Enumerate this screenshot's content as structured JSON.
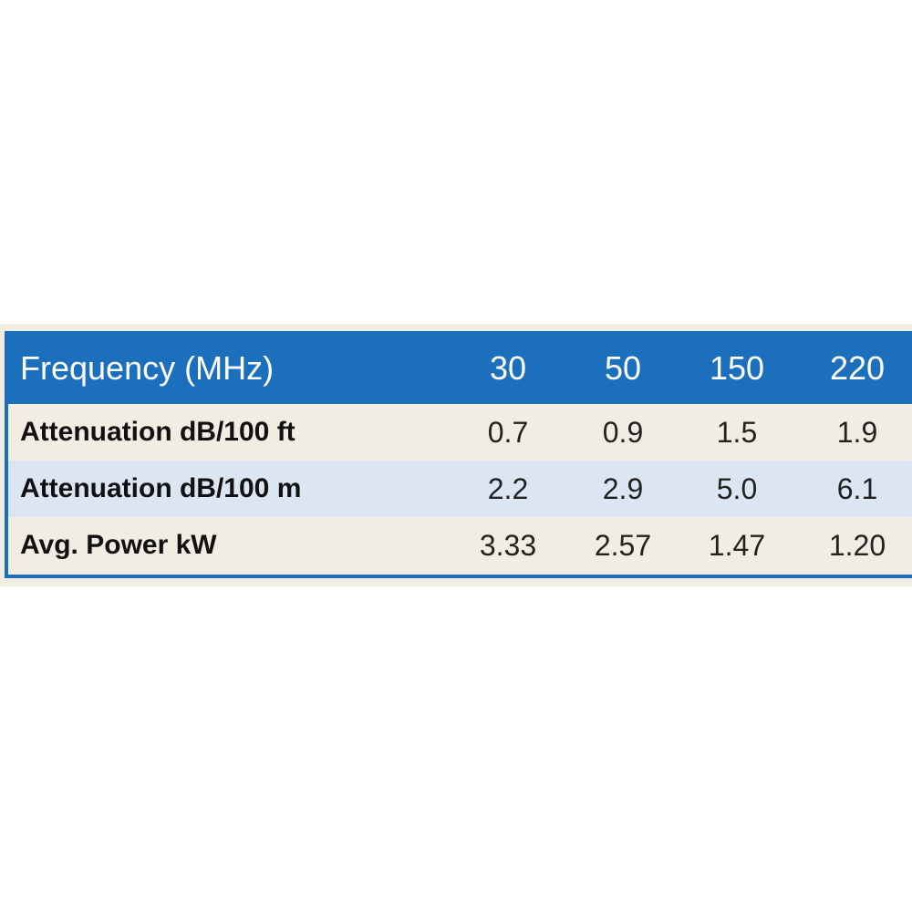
{
  "table": {
    "header": [
      "Frequency (MHz)",
      "30",
      "50",
      "150",
      "220"
    ],
    "rows": [
      [
        "Attenuation dB/100 ft",
        "0.7",
        "0.9",
        "1.5",
        "1.9"
      ],
      [
        "Attenuation dB/100 m",
        "2.2",
        "2.9",
        "5.0",
        "6.1"
      ],
      [
        "Avg. Power kW",
        "3.33",
        "2.57",
        "1.47",
        "1.20"
      ]
    ]
  }
}
